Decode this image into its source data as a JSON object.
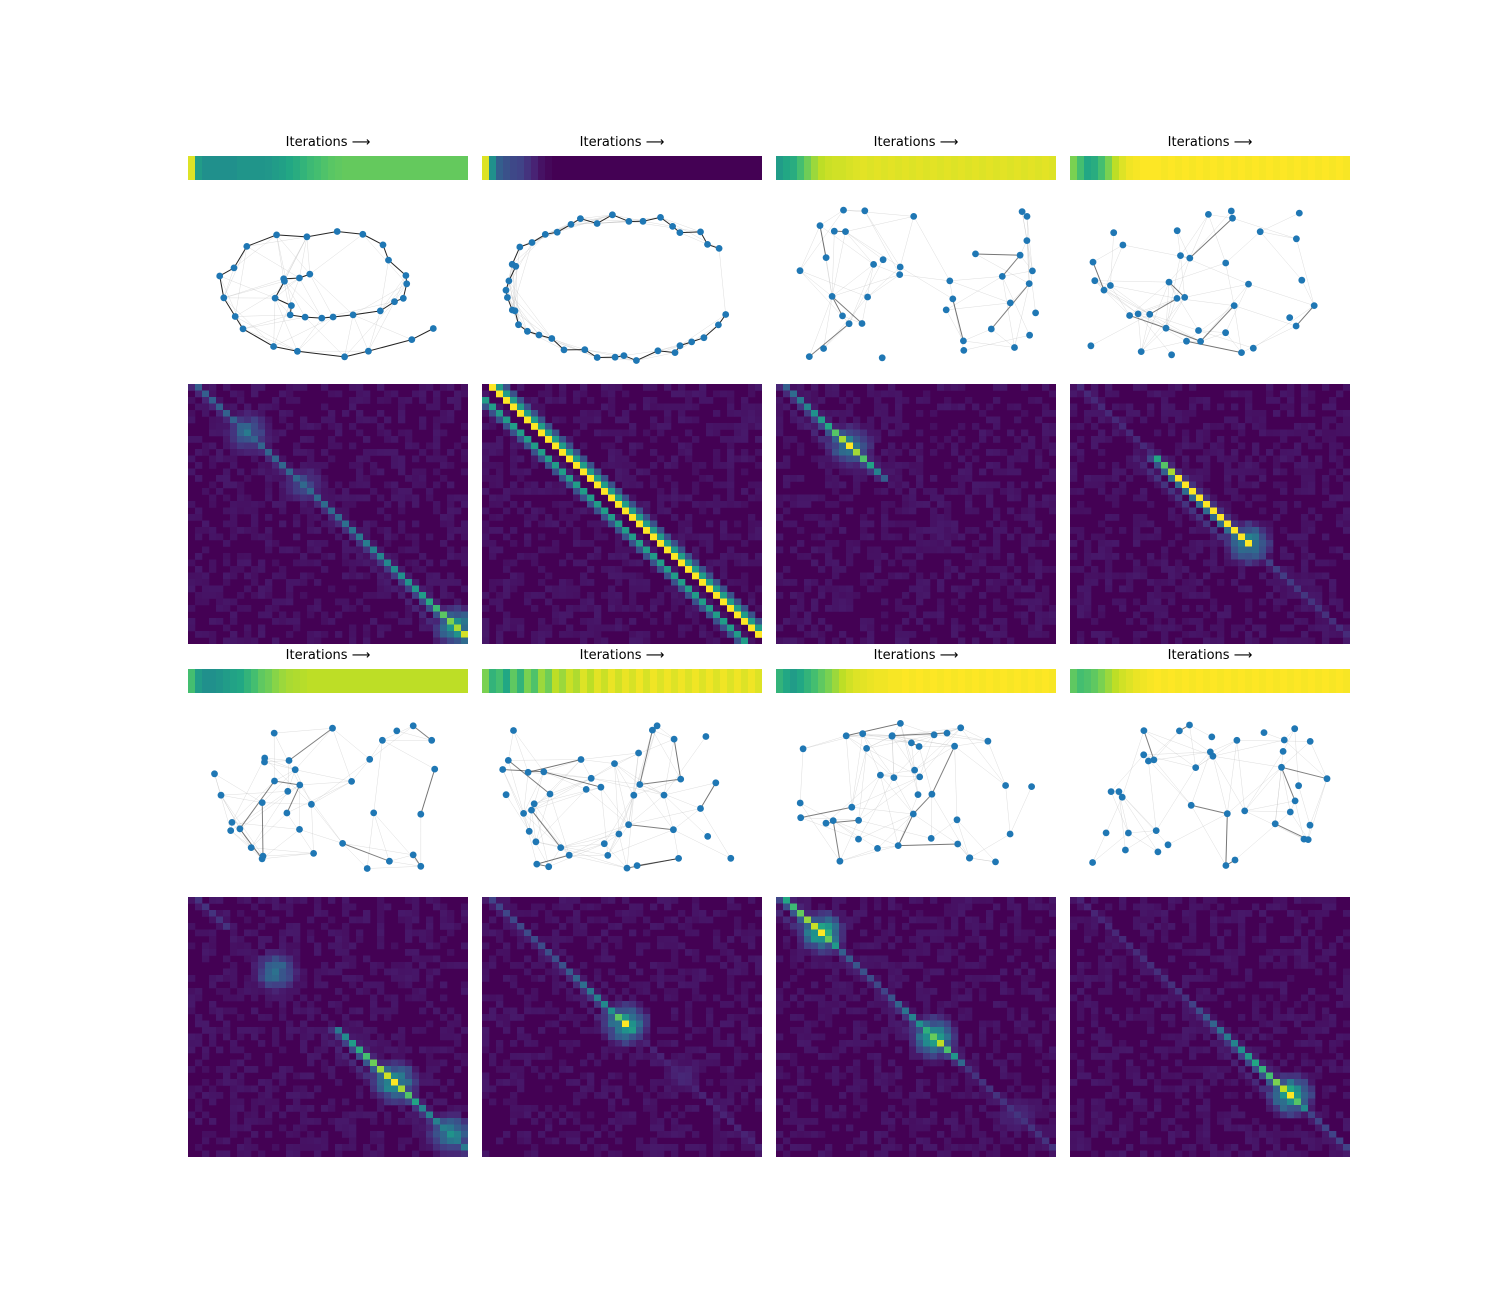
{
  "figure": {
    "strip_title": "Iterations ⟶",
    "colormap": "viridis",
    "node_color": "#1f77b4",
    "edge_color_strong": "#000000",
    "edge_color_weak": "#bbbbbb"
  },
  "chart_data": [
    {
      "type": "heatmap",
      "title": "Iterations ⟶",
      "panel": "row1-col1",
      "strip_values": [
        0.95,
        0.55,
        0.5,
        0.5,
        0.5,
        0.5,
        0.5,
        0.52,
        0.52,
        0.52,
        0.52,
        0.53,
        0.55,
        0.57,
        0.6,
        0.62,
        0.65,
        0.68,
        0.7,
        0.72,
        0.74,
        0.75,
        0.76,
        0.76,
        0.76,
        0.76,
        0.76,
        0.76,
        0.76,
        0.76,
        0.76,
        0.76,
        0.76,
        0.76,
        0.76,
        0.76,
        0.76,
        0.76,
        0.76,
        0.76
      ],
      "graph_nodes": 34,
      "graph_shape": "spiral",
      "matrix_size": 40,
      "diagonal_offset": 1,
      "blobs": [
        {
          "center": 7,
          "strength": 0.45
        },
        {
          "center": 15,
          "strength": 0.3
        },
        {
          "center": 37,
          "strength": 0.75
        }
      ],
      "diagonal_profile": [
        [
          0,
          0.3
        ],
        [
          20,
          0.35
        ],
        [
          32,
          0.55
        ],
        [
          39,
          1.0
        ]
      ]
    },
    {
      "type": "heatmap",
      "title": "Iterations ⟶",
      "panel": "row1-col2",
      "strip_values": [
        0.95,
        0.5,
        0.3,
        0.25,
        0.22,
        0.2,
        0.15,
        0.1,
        0.05,
        0.02,
        0.0,
        0.0,
        0.0,
        0.0,
        0.0,
        0.0,
        0.0,
        0.0,
        0.0,
        0.0,
        0.0,
        0.0,
        0.0,
        0.0,
        0.0,
        0.0,
        0.0,
        0.0,
        0.0,
        0.0,
        0.0,
        0.0,
        0.0,
        0.0,
        0.0,
        0.0,
        0.0,
        0.0,
        0.0,
        0.0
      ],
      "graph_nodes": 40,
      "graph_shape": "horseshoe",
      "matrix_size": 40,
      "diagonal_offset": 1,
      "blobs": [],
      "diagonal_profile": [
        [
          0,
          1.0
        ],
        [
          39,
          1.0
        ]
      ]
    },
    {
      "type": "heatmap",
      "title": "Iterations ⟶",
      "panel": "row1-col3",
      "strip_values": [
        0.55,
        0.6,
        0.62,
        0.7,
        0.78,
        0.85,
        0.9,
        0.92,
        0.93,
        0.93,
        0.94,
        0.95,
        0.96,
        0.95,
        0.96,
        0.95,
        0.96,
        0.95,
        0.96,
        0.95,
        0.96,
        0.95,
        0.96,
        0.95,
        0.96,
        0.95,
        0.96,
        0.95,
        0.96,
        0.95,
        0.96,
        0.95,
        0.96,
        0.95,
        0.96,
        0.95,
        0.96,
        0.95,
        0.96,
        0.95
      ],
      "graph_nodes": 38,
      "graph_shape": "random",
      "matrix_size": 40,
      "diagonal_offset": 1,
      "blobs": [
        {
          "center": 9,
          "strength": 0.6
        },
        {
          "center": 22,
          "strength": 0.1
        }
      ],
      "diagonal_profile": [
        [
          0,
          0.3
        ],
        [
          6,
          0.6
        ],
        [
          9,
          1.0
        ],
        [
          14,
          0.3
        ],
        [
          15,
          0.0
        ],
        [
          39,
          0.0
        ]
      ]
    },
    {
      "type": "heatmap",
      "title": "Iterations ⟶",
      "panel": "row1-col4",
      "strip_values": [
        0.8,
        0.7,
        0.6,
        0.62,
        0.7,
        0.8,
        0.9,
        0.95,
        0.98,
        0.99,
        1.0,
        1.0,
        1.0,
        0.99,
        1.0,
        0.99,
        1.0,
        0.99,
        1.0,
        0.99,
        1.0,
        0.99,
        1.0,
        0.99,
        1.0,
        0.99,
        1.0,
        0.99,
        1.0,
        0.99,
        1.0,
        0.99,
        1.0,
        0.99,
        1.0,
        0.99,
        1.0,
        0.99,
        1.0,
        0.99
      ],
      "graph_nodes": 38,
      "graph_shape": "random",
      "matrix_size": 40,
      "diagonal_offset": 1,
      "blobs": [
        {
          "center": 24,
          "strength": 0.7
        },
        {
          "center": 33,
          "strength": 0.1
        }
      ],
      "diagonal_profile": [
        [
          0,
          0.12
        ],
        [
          10,
          0.12
        ],
        [
          11,
          0.6
        ],
        [
          14,
          1.0
        ],
        [
          24,
          1.0
        ],
        [
          25,
          0.2
        ],
        [
          39,
          0.12
        ]
      ]
    },
    {
      "type": "heatmap",
      "title": "Iterations ⟶",
      "panel": "row2-col1",
      "strip_values": [
        0.7,
        0.55,
        0.5,
        0.5,
        0.52,
        0.55,
        0.58,
        0.6,
        0.65,
        0.7,
        0.75,
        0.78,
        0.82,
        0.85,
        0.87,
        0.88,
        0.89,
        0.9,
        0.9,
        0.9,
        0.9,
        0.9,
        0.9,
        0.9,
        0.9,
        0.9,
        0.9,
        0.9,
        0.9,
        0.9,
        0.9,
        0.9,
        0.9,
        0.9,
        0.9,
        0.9,
        0.9,
        0.9,
        0.9,
        0.9
      ],
      "graph_nodes": 36,
      "graph_shape": "random",
      "matrix_size": 40,
      "diagonal_offset": 1,
      "blobs": [
        {
          "center": 11,
          "strength": 0.5
        },
        {
          "center": 28,
          "strength": 0.8
        },
        {
          "center": 36,
          "strength": 0.6
        }
      ],
      "diagonal_profile": [
        [
          0,
          0.15
        ],
        [
          4,
          0.15
        ],
        [
          5,
          0.05
        ],
        [
          19,
          0.05
        ],
        [
          20,
          0.4
        ],
        [
          28,
          1.0
        ],
        [
          32,
          0.45
        ],
        [
          39,
          0.4
        ]
      ]
    },
    {
      "type": "heatmap",
      "title": "Iterations ⟶",
      "panel": "row2-col2",
      "strip_values": [
        0.8,
        0.65,
        0.7,
        0.6,
        0.75,
        0.65,
        0.8,
        0.72,
        0.85,
        0.78,
        0.9,
        0.85,
        0.92,
        0.88,
        0.95,
        0.9,
        0.96,
        0.92,
        0.97,
        0.93,
        0.97,
        0.94,
        0.98,
        0.94,
        0.98,
        0.95,
        0.98,
        0.95,
        0.98,
        0.95,
        0.98,
        0.95,
        0.98,
        0.95,
        0.98,
        0.95,
        0.98,
        0.95,
        0.98,
        0.95
      ],
      "graph_nodes": 42,
      "graph_shape": "random",
      "matrix_size": 40,
      "diagonal_offset": 1,
      "blobs": [
        {
          "center": 19,
          "strength": 0.8
        },
        {
          "center": 27,
          "strength": 0.15
        }
      ],
      "diagonal_profile": [
        [
          0,
          0.2
        ],
        [
          10,
          0.25
        ],
        [
          17,
          0.5
        ],
        [
          19,
          1.0
        ],
        [
          21,
          0.1
        ],
        [
          39,
          0.1
        ]
      ]
    },
    {
      "type": "heatmap",
      "title": "Iterations ⟶",
      "panel": "row2-col3",
      "strip_values": [
        0.65,
        0.6,
        0.55,
        0.6,
        0.65,
        0.7,
        0.75,
        0.8,
        0.85,
        0.9,
        0.93,
        0.95,
        0.96,
        0.97,
        0.98,
        0.98,
        0.99,
        0.99,
        1.0,
        0.99,
        1.0,
        0.99,
        1.0,
        0.99,
        1.0,
        0.99,
        1.0,
        0.99,
        1.0,
        0.99,
        1.0,
        0.99,
        1.0,
        0.99,
        1.0,
        0.99,
        1.0,
        0.99,
        1.0,
        0.99
      ],
      "graph_nodes": 40,
      "graph_shape": "random",
      "matrix_size": 40,
      "diagonal_offset": 1,
      "blobs": [
        {
          "center": 5,
          "strength": 0.85
        },
        {
          "center": 21,
          "strength": 0.8
        },
        {
          "center": 33,
          "strength": 0.2
        }
      ],
      "diagonal_profile": [
        [
          0,
          0.6
        ],
        [
          5,
          1.0
        ],
        [
          8,
          0.3
        ],
        [
          14,
          0.2
        ],
        [
          19,
          0.5
        ],
        [
          22,
          0.9
        ],
        [
          26,
          0.15
        ],
        [
          39,
          0.15
        ]
      ]
    },
    {
      "type": "heatmap",
      "title": "Iterations ⟶",
      "panel": "row2-col4",
      "strip_values": [
        0.75,
        0.7,
        0.72,
        0.75,
        0.8,
        0.85,
        0.9,
        0.93,
        0.95,
        0.97,
        0.98,
        0.99,
        1.0,
        0.99,
        1.0,
        0.99,
        1.0,
        0.99,
        1.0,
        0.99,
        1.0,
        0.99,
        1.0,
        0.99,
        1.0,
        0.99,
        1.0,
        0.99,
        1.0,
        0.99,
        1.0,
        0.99,
        1.0,
        0.99,
        1.0,
        0.99,
        1.0,
        0.99,
        1.0,
        0.99
      ],
      "graph_nodes": 40,
      "graph_shape": "random",
      "matrix_size": 40,
      "diagonal_offset": 1,
      "blobs": [
        {
          "center": 30,
          "strength": 0.85
        }
      ],
      "diagonal_profile": [
        [
          0,
          0.1
        ],
        [
          15,
          0.15
        ],
        [
          22,
          0.45
        ],
        [
          27,
          0.7
        ],
        [
          30,
          1.0
        ],
        [
          33,
          0.2
        ],
        [
          39,
          0.2
        ]
      ]
    }
  ]
}
